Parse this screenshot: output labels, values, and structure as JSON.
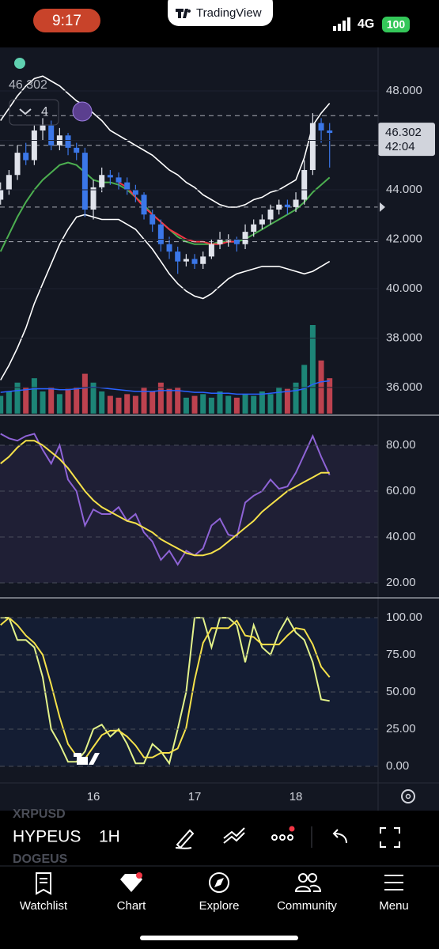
{
  "status_bar": {
    "time": "9:17",
    "app": "TradingView",
    "network": "4G",
    "battery": "100"
  },
  "chart_data": [
    {
      "type": "candlestick",
      "categories": [
        null,
        null,
        null,
        null,
        null,
        null,
        null,
        null,
        null,
        null,
        null,
        "16",
        null,
        null,
        null,
        null,
        null,
        null,
        null,
        null,
        null,
        null,
        null,
        "17",
        null,
        null,
        null,
        null,
        null,
        null,
        null,
        null,
        null,
        null,
        null,
        "18",
        null,
        null,
        null,
        null
      ],
      "open": [
        43.6,
        44.0,
        44.6,
        45.5,
        45.2,
        46.4,
        46.6,
        45.8,
        46.2,
        45.7,
        45.5,
        43.2,
        44.1,
        44.6,
        44.5,
        44.3,
        44.0,
        43.8,
        43.0,
        42.6,
        41.8,
        41.5,
        41.1,
        41.2,
        41.0,
        41.3,
        41.8,
        42.0,
        42.0,
        41.8,
        42.3,
        42.6,
        42.8,
        43.2,
        43.4,
        43.3,
        43.6,
        44.8,
        46.7,
        46.4
      ],
      "high": [
        44.3,
        44.8,
        45.8,
        45.9,
        46.6,
        46.9,
        46.8,
        46.5,
        46.3,
        45.9,
        45.7,
        44.4,
        44.9,
        44.8,
        44.7,
        44.5,
        44.2,
        43.9,
        43.2,
        42.8,
        42.1,
        41.7,
        41.4,
        41.4,
        41.5,
        42.0,
        42.3,
        42.2,
        42.1,
        42.6,
        42.8,
        43.0,
        43.4,
        43.6,
        43.6,
        43.9,
        45.2,
        47.1,
        46.9,
        46.7
      ],
      "low": [
        43.4,
        43.8,
        44.4,
        45.0,
        45.0,
        46.0,
        45.6,
        45.6,
        45.4,
        45.2,
        42.9,
        42.8,
        43.9,
        44.2,
        44.0,
        43.8,
        43.5,
        42.8,
        42.3,
        41.5,
        41.2,
        40.6,
        40.9,
        40.8,
        40.8,
        41.2,
        41.6,
        41.7,
        41.5,
        41.6,
        42.1,
        42.4,
        42.6,
        43.0,
        43.0,
        43.1,
        43.4,
        44.6,
        45.9,
        44.9
      ],
      "close": [
        44.0,
        44.6,
        45.5,
        45.2,
        46.4,
        46.6,
        45.8,
        46.2,
        45.7,
        45.5,
        43.2,
        44.1,
        44.6,
        44.5,
        44.3,
        44.0,
        43.8,
        43.0,
        42.6,
        41.8,
        41.5,
        41.1,
        41.2,
        41.0,
        41.3,
        41.8,
        42.0,
        42.0,
        41.8,
        42.3,
        42.6,
        42.8,
        43.2,
        43.4,
        43.3,
        43.6,
        44.8,
        46.7,
        46.4,
        46.302
      ],
      "up_color": "#e0e3eb",
      "down_color": "#3b77e8",
      "series": [
        {
          "color": "#ffffff",
          "values": [
            46.8,
            47.3,
            47.8,
            48.2,
            48.5,
            48.6,
            48.4,
            48.2,
            47.9,
            47.6,
            47.4,
            47.1,
            46.8,
            46.4,
            46.2,
            46.0,
            45.8,
            45.6,
            45.4,
            45.1,
            44.8,
            44.6,
            44.3,
            44.1,
            43.8,
            43.6,
            43.4,
            43.3,
            43.3,
            43.4,
            43.6,
            43.7,
            43.9,
            44.0,
            44.2,
            44.4,
            45.3,
            46.6,
            47.1,
            47.5
          ]
        },
        {
          "color": "#ffffff",
          "values": [
            36.3,
            36.9,
            37.6,
            38.4,
            39.4,
            40.2,
            41.0,
            41.8,
            42.4,
            42.9,
            43.0,
            42.9,
            42.8,
            42.8,
            42.8,
            42.6,
            42.4,
            42.0,
            41.6,
            41.1,
            40.6,
            40.2,
            39.9,
            39.7,
            39.6,
            39.8,
            40.1,
            40.4,
            40.6,
            40.7,
            40.8,
            40.9,
            40.9,
            40.9,
            40.8,
            40.7,
            40.6,
            40.7,
            40.9,
            41.1
          ]
        },
        {
          "color": "#4caf50",
          "values": [
            41.5,
            42.2,
            42.9,
            43.5,
            44.0,
            44.4,
            44.7,
            45.0,
            45.1,
            45.0,
            44.7,
            44.4,
            44.3,
            44.3,
            44.2,
            44.0,
            43.7,
            43.4,
            43.0,
            42.7,
            42.4,
            42.1,
            41.9,
            41.8,
            41.8,
            41.8,
            41.9,
            41.9,
            41.9,
            42.0,
            42.2,
            42.4,
            42.6,
            42.8,
            43.0,
            43.2,
            43.5,
            43.9,
            44.2,
            44.5
          ]
        },
        {
          "color": "#f23645",
          "values": [
            null,
            null,
            null,
            null,
            null,
            null,
            null,
            null,
            null,
            null,
            null,
            null,
            null,
            null,
            44.3,
            44.1,
            43.7,
            43.3,
            43.0,
            42.7,
            42.4,
            42.2,
            42.0,
            41.9,
            41.9,
            41.8,
            41.8,
            41.9,
            41.9,
            null,
            null,
            null,
            null,
            null,
            null,
            null,
            null,
            null,
            null,
            null
          ]
        }
      ],
      "volume": {
        "up_color": "#22ab94",
        "down_color": "#f7525f",
        "values": [
          20,
          25,
          35,
          30,
          40,
          25,
          30,
          22,
          28,
          30,
          45,
          35,
          25,
          20,
          18,
          22,
          20,
          30,
          25,
          35,
          28,
          30,
          18,
          20,
          22,
          18,
          25,
          20,
          18,
          22,
          20,
          25,
          22,
          30,
          28,
          35,
          55,
          100,
          60,
          40
        ]
      },
      "volume_ma": {
        "color": "#2962ff",
        "values": [
          24,
          25,
          26,
          27,
          28,
          28,
          28,
          27,
          27,
          28,
          29,
          30,
          29,
          28,
          27,
          26,
          25,
          25,
          25,
          26,
          26,
          26,
          25,
          24,
          24,
          23,
          23,
          23,
          22,
          22,
          22,
          22,
          23,
          24,
          25,
          26,
          28,
          33,
          36,
          37
        ]
      },
      "ylim": [
        34.88,
        49.76
      ],
      "yticks": [
        {
          "value": 36,
          "label": "36.000"
        },
        {
          "value": 38,
          "label": "38.000"
        },
        {
          "value": 40,
          "label": "40.000"
        },
        {
          "value": 42,
          "label": "42.000"
        },
        {
          "value": 44,
          "label": "44.000"
        },
        {
          "value": 46,
          "label": "46.000"
        },
        {
          "value": 48,
          "label": "48.000"
        }
      ],
      "levels": [
        47.0,
        45.8,
        43.3,
        41.9
      ],
      "last_price": {
        "value": 46.302,
        "label": "46.302"
      },
      "countdown": "42:04",
      "hidden_indicators": "4"
    },
    {
      "type": "line",
      "series": [
        {
          "color": "#8e63d6",
          "values": [
            85,
            83,
            82,
            84,
            85,
            78,
            72,
            80,
            65,
            60,
            45,
            52,
            50,
            50,
            53,
            47,
            50,
            42,
            38,
            30,
            34,
            28,
            34,
            32,
            35,
            45,
            48,
            41,
            40,
            55,
            58,
            60,
            65,
            61,
            62,
            68,
            76,
            84,
            75,
            67
          ]
        },
        {
          "color": "#f5e14a",
          "values": [
            72,
            75,
            79,
            82,
            82,
            80,
            77,
            74,
            70,
            65,
            60,
            56,
            53,
            51,
            49,
            47,
            46,
            44,
            42,
            39,
            37,
            35,
            33,
            32,
            32,
            33,
            35,
            38,
            41,
            44,
            47,
            51,
            54,
            57,
            60,
            62,
            64,
            66,
            68,
            68
          ]
        }
      ],
      "ylim": [
        13.8,
        92.4
      ],
      "yticks": [
        {
          "value": 20,
          "label": "20.00"
        },
        {
          "value": 40,
          "label": "40.00"
        },
        {
          "value": 60,
          "label": "60.00"
        },
        {
          "value": 80,
          "label": "80.00"
        }
      ]
    },
    {
      "type": "line",
      "series": [
        {
          "color": "#e3f28a",
          "values": [
            100,
            100,
            85,
            85,
            80,
            60,
            25,
            15,
            3,
            3,
            10,
            25,
            28,
            20,
            25,
            15,
            2,
            2,
            15,
            10,
            2,
            25,
            50,
            100,
            100,
            80,
            100,
            100,
            95,
            70,
            95,
            80,
            75,
            90,
            100,
            90,
            85,
            70,
            45,
            44
          ]
        },
        {
          "color": "#f5e14a",
          "values": [
            95,
            100,
            95,
            88,
            83,
            75,
            55,
            33,
            15,
            7,
            5,
            13,
            21,
            24,
            24,
            20,
            14,
            6,
            6,
            9,
            9,
            12,
            26,
            58,
            83,
            93,
            93,
            93,
            98,
            88,
            87,
            82,
            82,
            82,
            88,
            93,
            92,
            82,
            67,
            60
          ]
        }
      ],
      "ylim": [
        -11.2,
        112.8
      ],
      "yticks": [
        {
          "value": 0,
          "label": "0.00"
        },
        {
          "value": 25,
          "label": "25.00"
        },
        {
          "value": 50,
          "label": "50.00"
        },
        {
          "value": 75,
          "label": "75.00"
        },
        {
          "value": 100,
          "label": "100.00"
        }
      ]
    }
  ],
  "toolbar": {
    "symbols": [
      "XRPUSD",
      "HYPEUS",
      "DOGEUS"
    ],
    "interval": "1H"
  },
  "tab_bar": {
    "tabs": [
      "Watchlist",
      "Chart",
      "Explore",
      "Community",
      "Menu"
    ]
  }
}
